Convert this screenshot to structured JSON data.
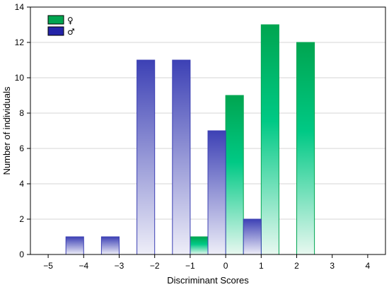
{
  "chart_data": {
    "type": "bar",
    "xlabel": "Discriminant Scores",
    "ylabel": "Number of individuals",
    "xlim": [
      -5.5,
      4.5
    ],
    "ylim": [
      0,
      14
    ],
    "x_ticks": [
      -5,
      -4,
      -3,
      -2,
      -1,
      0,
      1,
      2,
      3,
      4
    ],
    "x_tick_labels": [
      "−5",
      "−4",
      "−3",
      "−2",
      "−1",
      "0",
      "1",
      "2",
      "3",
      "4"
    ],
    "y_ticks": [
      0,
      2,
      4,
      6,
      8,
      10,
      12,
      14
    ],
    "y_tick_labels": [
      "0",
      "2",
      "4",
      "6",
      "8",
      "10",
      "12",
      "14"
    ],
    "grid": "horizontal",
    "legend_position": "top-left",
    "series": [
      {
        "name": "♀",
        "color": "#00a550",
        "light_color": "#e8f8f0",
        "bars": [
          {
            "x": -0.75,
            "value": 1
          },
          {
            "x": 0.25,
            "value": 9
          },
          {
            "x": 1.25,
            "value": 13
          },
          {
            "x": 2.25,
            "value": 12
          }
        ]
      },
      {
        "name": "♂",
        "color": "#3b3fb3",
        "light_color": "#eeeef8",
        "bars": [
          {
            "x": -4.25,
            "value": 1
          },
          {
            "x": -3.25,
            "value": 1
          },
          {
            "x": -2.25,
            "value": 11
          },
          {
            "x": -1.25,
            "value": 11
          },
          {
            "x": -0.25,
            "value": 7
          },
          {
            "x": 0.75,
            "value": 2
          }
        ]
      }
    ]
  }
}
